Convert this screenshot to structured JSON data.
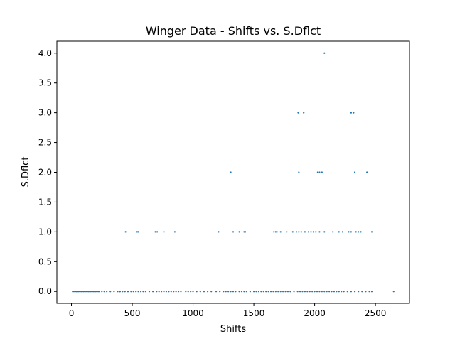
{
  "chart_data": {
    "type": "scatter",
    "title": "Winger Data - Shifts vs. S.Dflct",
    "xlabel": "Shifts",
    "ylabel": "S.Dflct",
    "xlim": [
      -120,
      2780
    ],
    "ylim": [
      -0.2,
      4.2
    ],
    "xticks": [
      0,
      500,
      1000,
      1500,
      2000,
      2500
    ],
    "yticks": [
      0.0,
      0.5,
      1.0,
      1.5,
      2.0,
      2.5,
      3.0,
      3.5,
      4.0
    ],
    "xtick_labels": [
      "0",
      "500",
      "1000",
      "1500",
      "2000",
      "2500"
    ],
    "ytick_labels": [
      "0.0",
      "0.5",
      "1.0",
      "1.5",
      "2.0",
      "2.5",
      "3.0",
      "3.5",
      "4.0"
    ],
    "grid": false,
    "marker_color": "#1f77b4",
    "series": [
      {
        "x": [
          10,
          20,
          30,
          40,
          50,
          60,
          70,
          80,
          90,
          100,
          110,
          120,
          130,
          140,
          150,
          160,
          170,
          180,
          190,
          200,
          210,
          220,
          230,
          250,
          270,
          290,
          320,
          350,
          380,
          400,
          420,
          440,
          460,
          470,
          490,
          510,
          530,
          550,
          570,
          590,
          610,
          640,
          670,
          700,
          720,
          740,
          760,
          780,
          800,
          820,
          840,
          860,
          880,
          900,
          940,
          960,
          980,
          1000,
          1030,
          1060,
          1090,
          1120,
          1150,
          1190,
          1220,
          1250,
          1270,
          1290,
          1310,
          1330,
          1350,
          1380,
          1400,
          1420,
          1440,
          1470,
          1500,
          1520,
          1540,
          1560,
          1580,
          1600,
          1620,
          1640,
          1660,
          1680,
          1700,
          1720,
          1740,
          1760,
          1780,
          1800,
          1830,
          1860,
          1880,
          1900,
          1920,
          1940,
          1960,
          1980,
          2000,
          2020,
          2040,
          2060,
          2080,
          2100,
          2120,
          2140,
          2160,
          2180,
          2200,
          2220,
          2240,
          2270,
          2300,
          2330,
          2360,
          2390,
          2420,
          2450,
          2470,
          2650,
          395,
          445,
          540,
          550,
          690,
          705,
          760,
          850,
          1210,
          1330,
          1380,
          1420,
          1430,
          1665,
          1680,
          1690,
          1720,
          1770,
          1820,
          1850,
          1870,
          1890,
          1920,
          1950,
          1970,
          1990,
          2010,
          2040,
          2080,
          2150,
          2200,
          2230,
          2280,
          2300,
          2340,
          2360,
          2380,
          2470,
          1310,
          1870,
          2025,
          2040,
          2060,
          2330,
          2430,
          1865,
          1910,
          2300,
          2320,
          2080
        ],
        "y": [
          0,
          0,
          0,
          0,
          0,
          0,
          0,
          0,
          0,
          0,
          0,
          0,
          0,
          0,
          0,
          0,
          0,
          0,
          0,
          0,
          0,
          0,
          0,
          0,
          0,
          0,
          0,
          0,
          0,
          0,
          0,
          0,
          0,
          0,
          0,
          0,
          0,
          0,
          0,
          0,
          0,
          0,
          0,
          0,
          0,
          0,
          0,
          0,
          0,
          0,
          0,
          0,
          0,
          0,
          0,
          0,
          0,
          0,
          0,
          0,
          0,
          0,
          0,
          0,
          0,
          0,
          0,
          0,
          0,
          0,
          0,
          0,
          0,
          0,
          0,
          0,
          0,
          0,
          0,
          0,
          0,
          0,
          0,
          0,
          0,
          0,
          0,
          0,
          0,
          0,
          0,
          0,
          0,
          0,
          0,
          0,
          0,
          0,
          0,
          0,
          0,
          0,
          0,
          0,
          0,
          0,
          0,
          0,
          0,
          0,
          0,
          0,
          0,
          0,
          0,
          0,
          0,
          0,
          0,
          0,
          0,
          0,
          0,
          1,
          1,
          1,
          1,
          1,
          1,
          1,
          1,
          1,
          1,
          1,
          1,
          1,
          1,
          1,
          1,
          1,
          1,
          1,
          1,
          1,
          1,
          1,
          1,
          1,
          1,
          1,
          1,
          1,
          1,
          1,
          1,
          1,
          1,
          1,
          1,
          1,
          2,
          2,
          2,
          2,
          2,
          2,
          2,
          3,
          3,
          3,
          3,
          4
        ]
      }
    ]
  }
}
